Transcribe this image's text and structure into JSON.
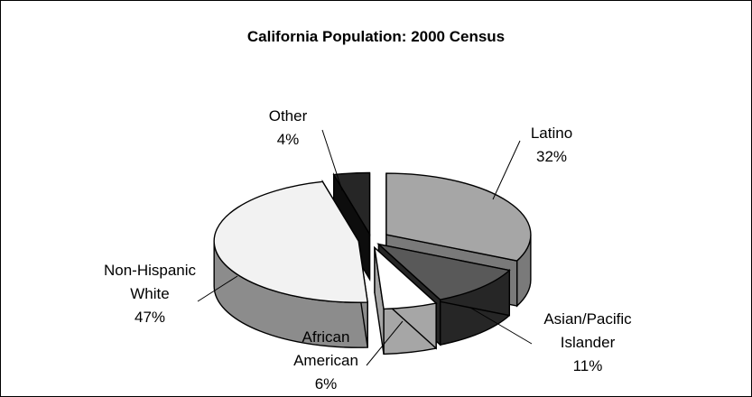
{
  "chart_data": {
    "type": "pie",
    "title": "California Population: 2000 Census",
    "slices": [
      {
        "label_lines": [
          "Latino"
        ],
        "value": 32,
        "value_label": "32%",
        "color": "#a6a6a6",
        "side_color": "#7a7a7a"
      },
      {
        "label_lines": [
          "Asian/Pacific",
          "Islander"
        ],
        "value": 11,
        "value_label": "11%",
        "color": "#595959",
        "side_color": "#262626"
      },
      {
        "label_lines": [
          "African",
          "American"
        ],
        "value": 6,
        "value_label": "6%",
        "color": "#ffffff",
        "side_color": "#a6a6a6"
      },
      {
        "label_lines": [
          "Non-Hispanic",
          "White"
        ],
        "value": 47,
        "value_label": "47%",
        "color": "#f2f2f2",
        "side_color": "#8c8c8c"
      },
      {
        "label_lines": [
          "Other"
        ],
        "value": 4,
        "value_label": "4%",
        "color": "#262626",
        "side_color": "#0d0d0d"
      }
    ],
    "legend": "none",
    "grid": false,
    "style": "3d-exploded"
  }
}
